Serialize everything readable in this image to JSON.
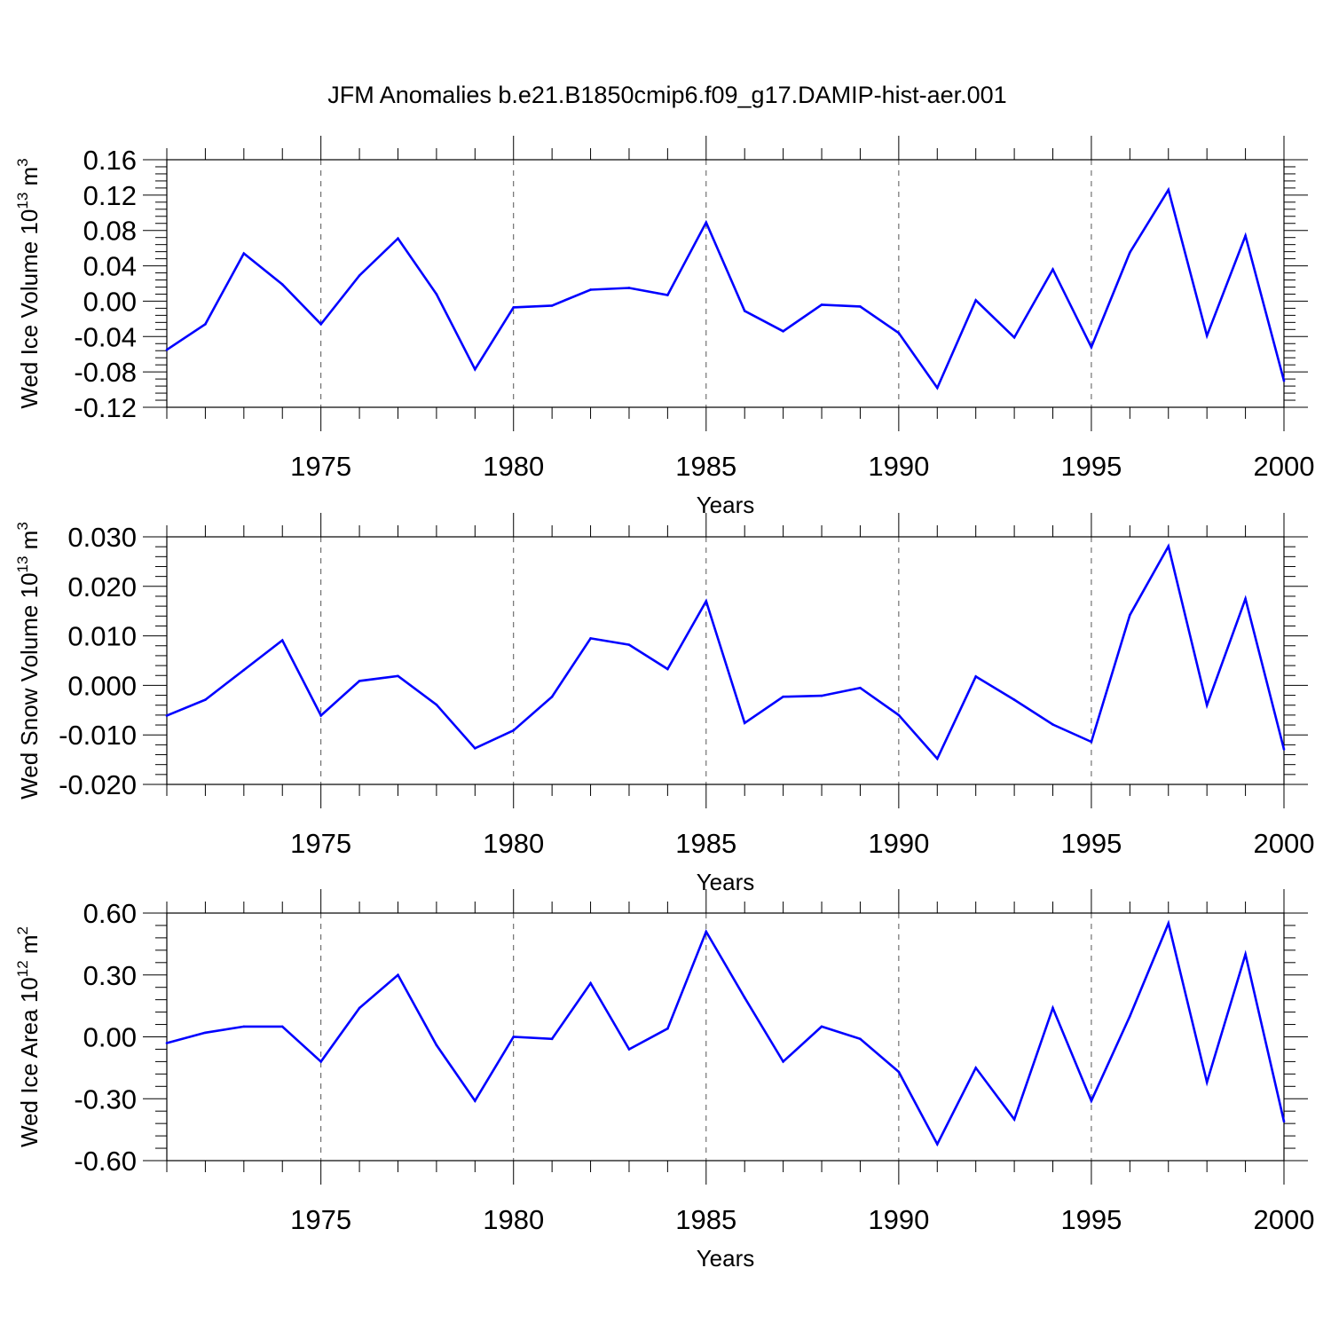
{
  "title": "JFM Anomalies b.e21.B1850cmip6.f09_g17.DAMIP-hist-aer.001",
  "line_color": "#0000ff",
  "chart_data": [
    {
      "type": "line",
      "ylabel": "Wed Ice Volume 10",
      "ylabel_exp": "13",
      "ylabel_unit": " m",
      "ylabel_unit_exp": "3",
      "xlabel": "Years",
      "xlim": [
        1971,
        2000
      ],
      "ylim": [
        -0.12,
        0.16
      ],
      "yticks": [
        -0.12,
        -0.08,
        -0.04,
        0.0,
        0.04,
        0.08,
        0.12,
        0.16
      ],
      "ytick_labels": [
        "-0.12",
        "-0.08",
        "-0.04",
        "0.00",
        "0.04",
        "0.08",
        "0.12",
        "0.16"
      ],
      "xticks": [
        1975,
        1980,
        1985,
        1990,
        1995,
        2000
      ],
      "xtick_labels": [
        "1975",
        "1980",
        "1985",
        "1990",
        "1995",
        "2000"
      ],
      "grid": "dashed vertical at labeled years",
      "x": [
        1971,
        1972,
        1973,
        1974,
        1975,
        1976,
        1977,
        1978,
        1979,
        1980,
        1981,
        1982,
        1983,
        1984,
        1985,
        1986,
        1987,
        1988,
        1989,
        1990,
        1991,
        1992,
        1993,
        1994,
        1995,
        1996,
        1997,
        1998,
        1999,
        2000
      ],
      "values": [
        -0.055,
        -0.026,
        0.054,
        0.019,
        -0.026,
        0.029,
        0.071,
        0.008,
        -0.077,
        -0.007,
        -0.005,
        0.013,
        0.015,
        0.007,
        0.089,
        -0.011,
        -0.034,
        -0.004,
        -0.006,
        -0.036,
        -0.098,
        0.001,
        -0.041,
        0.036,
        -0.052,
        0.055,
        0.126,
        -0.039,
        0.074,
        -0.09
      ]
    },
    {
      "type": "line",
      "ylabel": "Wed Snow Volume 10",
      "ylabel_exp": "13",
      "ylabel_unit": " m",
      "ylabel_unit_exp": "3",
      "xlabel": "Years",
      "xlim": [
        1971,
        2000
      ],
      "ylim": [
        -0.02,
        0.03
      ],
      "yticks": [
        -0.02,
        -0.01,
        0.0,
        0.01,
        0.02,
        0.03
      ],
      "ytick_labels": [
        "-0.020",
        "-0.010",
        "0.000",
        "0.010",
        "0.020",
        "0.030"
      ],
      "xticks": [
        1975,
        1980,
        1985,
        1990,
        1995,
        2000
      ],
      "xtick_labels": [
        "1975",
        "1980",
        "1985",
        "1990",
        "1995",
        "2000"
      ],
      "grid": "dashed vertical at labeled years",
      "x": [
        1971,
        1972,
        1973,
        1974,
        1975,
        1976,
        1977,
        1978,
        1979,
        1980,
        1981,
        1982,
        1983,
        1984,
        1985,
        1986,
        1987,
        1988,
        1989,
        1990,
        1991,
        1992,
        1993,
        1994,
        1995,
        1996,
        1997,
        1998,
        1999,
        2000
      ],
      "values": [
        -0.0061,
        -0.0029,
        0.0031,
        0.0091,
        -0.0061,
        0.0009,
        0.0019,
        -0.0039,
        -0.0127,
        -0.0091,
        -0.0023,
        0.0095,
        0.0082,
        0.0033,
        0.017,
        -0.0076,
        -0.0023,
        -0.0021,
        -0.0005,
        -0.006,
        -0.0148,
        0.0018,
        -0.0029,
        -0.0079,
        -0.0114,
        0.0142,
        0.0281,
        -0.004,
        0.0175,
        -0.0129
      ]
    },
    {
      "type": "line",
      "ylabel": "Wed Ice Area 10",
      "ylabel_exp": "12",
      "ylabel_unit": " m",
      "ylabel_unit_exp": "2",
      "xlabel": "Years",
      "xlim": [
        1971,
        2000
      ],
      "ylim": [
        -0.6,
        0.6
      ],
      "yticks": [
        -0.6,
        -0.3,
        0.0,
        0.3,
        0.6
      ],
      "ytick_labels": [
        "-0.60",
        "-0.30",
        "0.00",
        "0.30",
        "0.60"
      ],
      "xticks": [
        1975,
        1980,
        1985,
        1990,
        1995,
        2000
      ],
      "xtick_labels": [
        "1975",
        "1980",
        "1985",
        "1990",
        "1995",
        "2000"
      ],
      "grid": "dashed vertical at labeled years",
      "x": [
        1971,
        1972,
        1973,
        1974,
        1975,
        1976,
        1977,
        1978,
        1979,
        1980,
        1981,
        1982,
        1983,
        1984,
        1985,
        1986,
        1987,
        1988,
        1989,
        1990,
        1991,
        1992,
        1993,
        1994,
        1995,
        1996,
        1997,
        1998,
        1999,
        2000
      ],
      "values": [
        -0.03,
        0.02,
        0.05,
        0.05,
        -0.12,
        0.14,
        0.3,
        -0.04,
        -0.31,
        0.0,
        -0.01,
        0.26,
        -0.06,
        0.04,
        0.51,
        0.19,
        -0.12,
        0.05,
        -0.01,
        -0.17,
        -0.52,
        -0.15,
        -0.4,
        0.14,
        -0.31,
        0.1,
        0.55,
        -0.22,
        0.4,
        -0.41
      ]
    }
  ]
}
